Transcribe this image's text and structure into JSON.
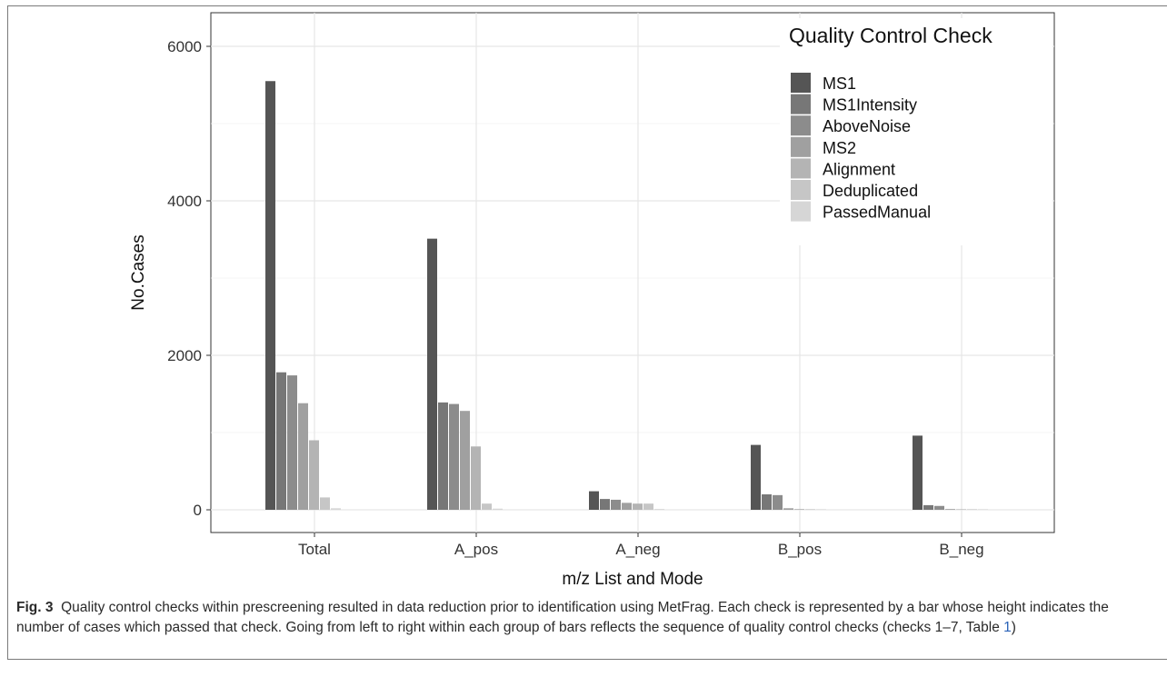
{
  "chart_data": {
    "type": "bar",
    "title": "",
    "xlabel": "m/z List and Mode",
    "ylabel": "No.Cases",
    "ylim": [
      0,
      6000
    ],
    "yticks": [
      0,
      2000,
      4000,
      6000
    ],
    "grid": true,
    "legend": {
      "title": "Quality Control Check",
      "position": "top-right"
    },
    "categories": [
      "Total",
      "A_pos",
      "A_neg",
      "B_pos",
      "B_neg"
    ],
    "series": [
      {
        "name": "MS1",
        "color": "#555555",
        "values": [
          5550,
          3510,
          240,
          840,
          960
        ]
      },
      {
        "name": "MS1Intensity",
        "color": "#777777",
        "values": [
          1780,
          1390,
          140,
          200,
          60
        ]
      },
      {
        "name": "AboveNoise",
        "color": "#8c8c8c",
        "values": [
          1740,
          1370,
          130,
          190,
          50
        ]
      },
      {
        "name": "MS2",
        "color": "#a0a0a0",
        "values": [
          1380,
          1280,
          90,
          20,
          10
        ]
      },
      {
        "name": "Alignment",
        "color": "#b4b4b4",
        "values": [
          900,
          820,
          80,
          10,
          5
        ]
      },
      {
        "name": "Deduplicated",
        "color": "#c6c6c6",
        "values": [
          160,
          80,
          80,
          8,
          4
        ]
      },
      {
        "name": "PassedManual",
        "color": "#d6d6d6",
        "values": [
          20,
          15,
          10,
          5,
          3
        ]
      }
    ]
  },
  "caption": {
    "label": "Fig. 3",
    "text_before_ref": "Quality control checks within prescreening resulted in data reduction prior to identification using MetFrag. Each check is represented by a bar whose height indicates the number of cases which passed that check. Going from left to right within each group of bars reflects the sequence of quality control checks (checks 1–7, Table ",
    "ref": "1",
    "text_after_ref": ")"
  }
}
